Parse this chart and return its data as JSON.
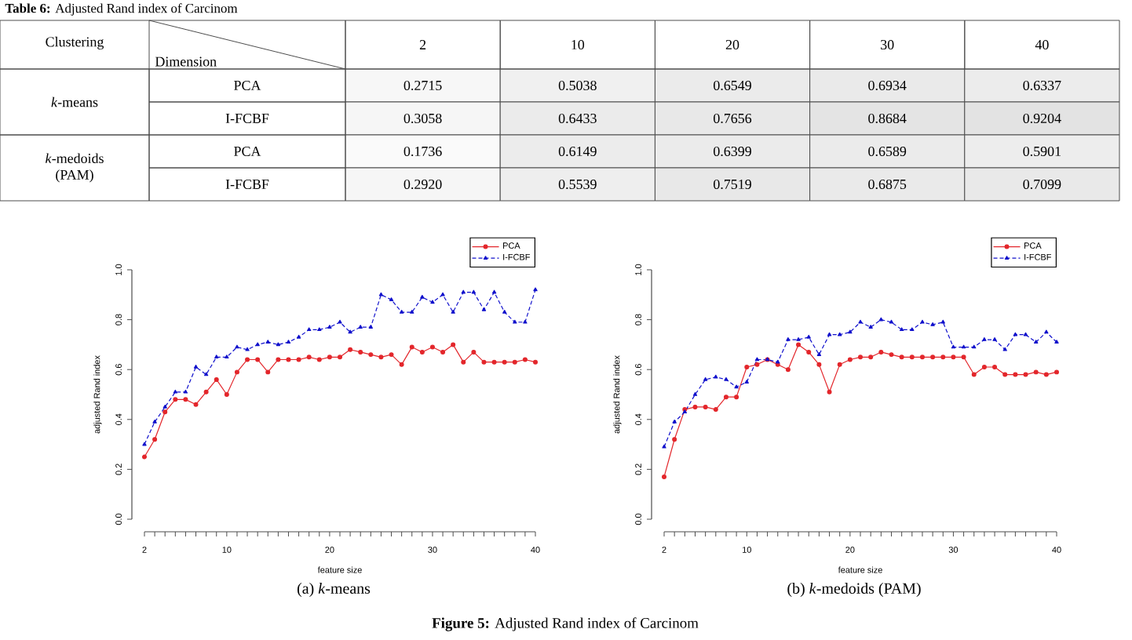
{
  "chart_data": [
    {
      "type": "heatmap",
      "title": "**Table 6:** Adjusted Rand index of Carcinom",
      "xlabel": "Dimension",
      "ylabel": "Clustering",
      "categories": [
        "2",
        "10",
        "20",
        "30",
        "40"
      ],
      "y_categories": [
        "PCA",
        "I-FCBF",
        "PCA",
        "I-FCBF"
      ],
      "y2_categories": [
        "*k*-means",
        null,
        "*k*-medoids (PAM)",
        null
      ],
      "data_labels": true,
      "cells": [
        [
          0.2715,
          0.5038,
          0.6549,
          0.6934,
          0.6337
        ],
        [
          0.3058,
          0.6433,
          0.7656,
          0.8684,
          0.9204
        ],
        [
          0.1736,
          0.6149,
          0.6399,
          0.6589,
          0.5901
        ],
        [
          0.292,
          0.5539,
          0.7519,
          0.6875,
          0.7099
        ]
      ],
      "cell_labels": [
        [
          "0.2715",
          "0.5038",
          "0.6549",
          "0.6934",
          "0.6337"
        ],
        [
          "0.3058",
          "0.6433",
          "0.7656",
          "0.8684",
          "0.9204"
        ],
        [
          "0.1736",
          "0.6149",
          "0.6399",
          "0.6589",
          "0.5901"
        ],
        [
          "0.2920",
          "0.5539",
          "0.7519",
          "0.6875",
          "0.7099"
        ]
      ]
    },
    {
      "type": "line",
      "xlabel": "feature size",
      "ylabel": "adjusted Rand index",
      "legend": "top right",
      "x": [
        2,
        3,
        4,
        5,
        6,
        7,
        8,
        9,
        10,
        11,
        12,
        13,
        14,
        15,
        16,
        17,
        18,
        19,
        20,
        21,
        22,
        23,
        24,
        25,
        26,
        27,
        28,
        29,
        30,
        31,
        32,
        33,
        34,
        35,
        36,
        37,
        38,
        39,
        40
      ],
      "xlim": [
        2,
        40
      ],
      "ylim": [
        0,
        1
      ],
      "xticks": [
        2,
        {
          "value": 3,
          "label": null
        },
        {
          "value": 4,
          "label": null
        },
        {
          "value": 5,
          "label": null
        },
        {
          "value": 6,
          "label": null
        },
        {
          "value": 7,
          "label": null
        },
        {
          "value": 8,
          "label": null
        },
        {
          "value": 9,
          "label": null
        },
        10,
        {
          "value": 11,
          "label": null
        },
        {
          "value": 12,
          "label": null
        },
        {
          "value": 13,
          "label": null
        },
        {
          "value": 14,
          "label": null
        },
        {
          "value": 15,
          "label": null
        },
        {
          "value": 16,
          "label": null
        },
        {
          "value": 17,
          "label": null
        },
        {
          "value": 18,
          "label": null
        },
        {
          "value": 19,
          "label": null
        },
        20,
        {
          "value": 21,
          "label": null
        },
        {
          "value": 22,
          "label": null
        },
        {
          "value": 23,
          "label": null
        },
        {
          "value": 24,
          "label": null
        },
        {
          "value": 25,
          "label": null
        },
        {
          "value": 26,
          "label": null
        },
        {
          "value": 27,
          "label": null
        },
        {
          "value": 28,
          "label": null
        },
        {
          "value": 29,
          "label": null
        },
        30,
        {
          "value": 31,
          "label": null
        },
        {
          "value": 32,
          "label": null
        },
        {
          "value": 33,
          "label": null
        },
        {
          "value": 34,
          "label": null
        },
        {
          "value": 35,
          "label": null
        },
        {
          "value": 36,
          "label": null
        },
        {
          "value": 37,
          "label": null
        },
        {
          "value": 38,
          "label": null
        },
        {
          "value": 39,
          "label": null
        },
        40
      ],
      "yticks": [
        {
          "value": 0,
          "label": "0.0"
        },
        {
          "value": 0.2,
          "label": "0.2"
        },
        {
          "value": 0.4,
          "label": "0.4"
        },
        {
          "value": 0.6,
          "label": "0.6"
        },
        {
          "value": 0.8,
          "label": "0.8"
        },
        {
          "value": 1,
          "label": "1.0"
        }
      ],
      "series": [
        {
          "name": "PCA",
          "color": "#e3262b",
          "marker": "circle",
          "line_style": "solid",
          "values": [
            0.25,
            0.32,
            0.43,
            0.48,
            0.48,
            0.46,
            0.51,
            0.56,
            0.5,
            0.59,
            0.64,
            0.64,
            0.59,
            0.64,
            0.64,
            0.64,
            0.65,
            0.64,
            0.65,
            0.65,
            0.68,
            0.67,
            0.66,
            0.65,
            0.66,
            0.62,
            0.69,
            0.67,
            0.69,
            0.67,
            0.7,
            0.63,
            0.67,
            0.63,
            0.63,
            0.63,
            0.63,
            0.64,
            0.63
          ]
        },
        {
          "name": "I-FCBF",
          "color": "#1010cc",
          "marker": "triangle",
          "line_style": "dashed",
          "values": [
            0.3,
            0.39,
            0.45,
            0.51,
            0.51,
            0.61,
            0.58,
            0.65,
            0.65,
            0.69,
            0.68,
            0.7,
            0.71,
            0.7,
            0.71,
            0.73,
            0.76,
            0.76,
            0.77,
            0.79,
            0.75,
            0.77,
            0.77,
            0.9,
            0.88,
            0.83,
            0.83,
            0.89,
            0.87,
            0.9,
            0.83,
            0.91,
            0.91,
            0.84,
            0.91,
            0.83,
            0.79,
            0.79,
            0.92
          ]
        }
      ],
      "annotations": [
        "(a) *k*-means"
      ]
    },
    {
      "type": "line",
      "xlabel": "feature size",
      "ylabel": "adjusted Rand index",
      "legend": "top right",
      "x": [
        2,
        3,
        4,
        5,
        6,
        7,
        8,
        9,
        10,
        11,
        12,
        13,
        14,
        15,
        16,
        17,
        18,
        19,
        20,
        21,
        22,
        23,
        24,
        25,
        26,
        27,
        28,
        29,
        30,
        31,
        32,
        33,
        34,
        35,
        36,
        37,
        38,
        39,
        40
      ],
      "xlim": [
        2,
        40
      ],
      "ylim": [
        0,
        1
      ],
      "xticks": [
        2,
        {
          "value": 3,
          "label": null
        },
        {
          "value": 4,
          "label": null
        },
        {
          "value": 5,
          "label": null
        },
        {
          "value": 6,
          "label": null
        },
        {
          "value": 7,
          "label": null
        },
        {
          "value": 8,
          "label": null
        },
        {
          "value": 9,
          "label": null
        },
        10,
        {
          "value": 11,
          "label": null
        },
        {
          "value": 12,
          "label": null
        },
        {
          "value": 13,
          "label": null
        },
        {
          "value": 14,
          "label": null
        },
        {
          "value": 15,
          "label": null
        },
        {
          "value": 16,
          "label": null
        },
        {
          "value": 17,
          "label": null
        },
        {
          "value": 18,
          "label": null
        },
        {
          "value": 19,
          "label": null
        },
        20,
        {
          "value": 21,
          "label": null
        },
        {
          "value": 22,
          "label": null
        },
        {
          "value": 23,
          "label": null
        },
        {
          "value": 24,
          "label": null
        },
        {
          "value": 25,
          "label": null
        },
        {
          "value": 26,
          "label": null
        },
        {
          "value": 27,
          "label": null
        },
        {
          "value": 28,
          "label": null
        },
        {
          "value": 29,
          "label": null
        },
        30,
        {
          "value": 31,
          "label": null
        },
        {
          "value": 32,
          "label": null
        },
        {
          "value": 33,
          "label": null
        },
        {
          "value": 34,
          "label": null
        },
        {
          "value": 35,
          "label": null
        },
        {
          "value": 36,
          "label": null
        },
        {
          "value": 37,
          "label": null
        },
        {
          "value": 38,
          "label": null
        },
        {
          "value": 39,
          "label": null
        },
        40
      ],
      "yticks": [
        {
          "value": 0,
          "label": "0.0"
        },
        {
          "value": 0.2,
          "label": "0.2"
        },
        {
          "value": 0.4,
          "label": "0.4"
        },
        {
          "value": 0.6,
          "label": "0.6"
        },
        {
          "value": 0.8,
          "label": "0.8"
        },
        {
          "value": 1,
          "label": "1.0"
        }
      ],
      "series": [
        {
          "name": "PCA",
          "color": "#e3262b",
          "marker": "circle",
          "line_style": "solid",
          "values": [
            0.17,
            0.32,
            0.44,
            0.45,
            0.45,
            0.44,
            0.49,
            0.49,
            0.61,
            0.62,
            0.64,
            0.62,
            0.6,
            0.7,
            0.67,
            0.62,
            0.51,
            0.62,
            0.64,
            0.65,
            0.65,
            0.67,
            0.66,
            0.65,
            0.65,
            0.65,
            0.65,
            0.65,
            0.65,
            0.65,
            0.58,
            0.61,
            0.61,
            0.58,
            0.58,
            0.58,
            0.59,
            0.58,
            0.59
          ]
        },
        {
          "name": "I-FCBF",
          "color": "#1010cc",
          "marker": "triangle",
          "line_style": "dashed",
          "values": [
            0.29,
            0.39,
            0.43,
            0.5,
            0.56,
            0.57,
            0.56,
            0.53,
            0.55,
            0.64,
            0.64,
            0.63,
            0.72,
            0.72,
            0.73,
            0.66,
            0.74,
            0.74,
            0.75,
            0.79,
            0.77,
            0.8,
            0.79,
            0.76,
            0.76,
            0.79,
            0.78,
            0.79,
            0.69,
            0.69,
            0.69,
            0.72,
            0.72,
            0.68,
            0.74,
            0.74,
            0.71,
            0.75,
            0.71
          ]
        }
      ],
      "annotations": [
        "(b) *k*-medoids (PAM)",
        "**Figure 5:** Adjusted Rand index of Carcinom"
      ]
    }
  ]
}
